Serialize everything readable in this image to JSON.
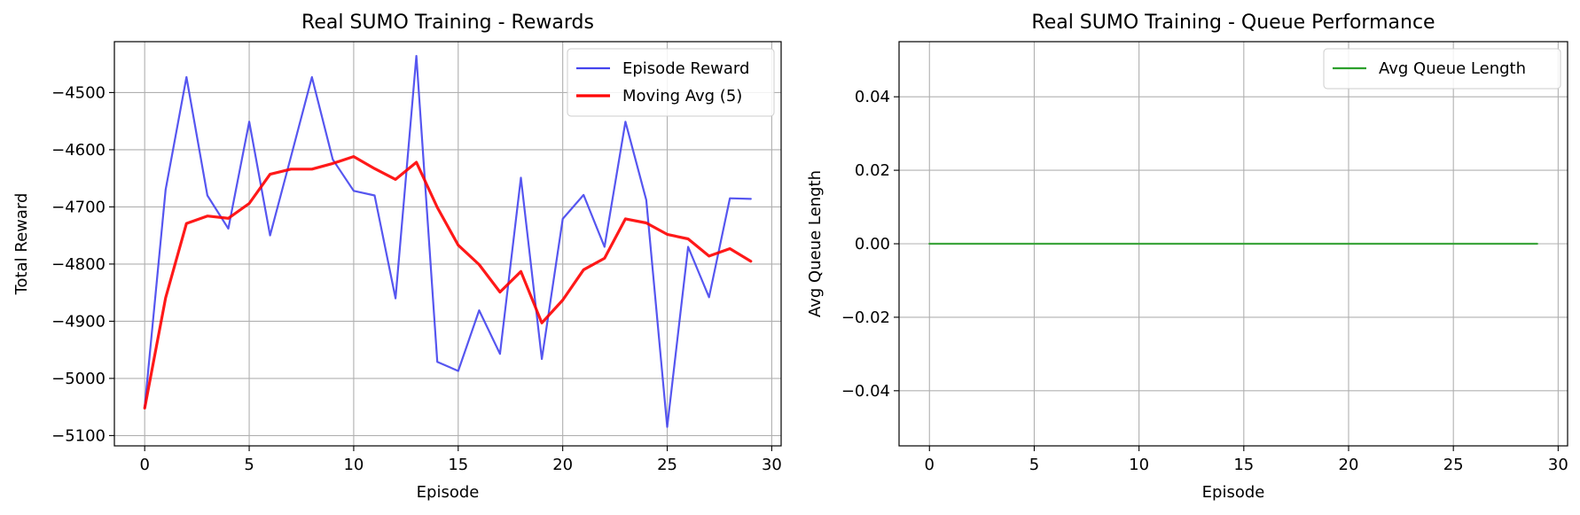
{
  "chart_data": [
    {
      "type": "line",
      "title": "Real SUMO Training - Rewards",
      "xlabel": "Episode",
      "ylabel": "Total Reward",
      "xlim": [
        -1.45,
        30.45
      ],
      "ylim": [
        -5118,
        -4411
      ],
      "xticks": [
        0,
        5,
        10,
        15,
        20,
        25,
        30
      ],
      "yticks": [
        -5100,
        -5000,
        -4900,
        -4800,
        -4700,
        -4600,
        -4500
      ],
      "grid": true,
      "legend_position": "upper right",
      "x": [
        0,
        1,
        2,
        3,
        4,
        5,
        6,
        7,
        8,
        9,
        10,
        11,
        12,
        13,
        14,
        15,
        16,
        17,
        18,
        19,
        20,
        21,
        22,
        23,
        24,
        25,
        26,
        27,
        28,
        29
      ],
      "series": [
        {
          "name": "Episode Reward",
          "color": "#4444ee",
          "values": [
            -5050,
            -4670,
            -4473,
            -4680,
            -4738,
            -4551,
            -4750,
            -4612,
            -4473,
            -4617,
            -4672,
            -4680,
            -4860,
            -4436,
            -4971,
            -4987,
            -4881,
            -4957,
            -4649,
            -4966,
            -4721,
            -4679,
            -4770,
            -4551,
            -4688,
            -5085,
            -4770,
            -4858,
            -4685,
            -4686
          ]
        },
        {
          "name": "Moving Avg (5)",
          "color": "#ff0000",
          "values": [
            -5052,
            -4859,
            -4729,
            -4716,
            -4720,
            -4694,
            -4643,
            -4634,
            -4634,
            -4624,
            -4612,
            -4633,
            -4652,
            -4622,
            -4701,
            -4767,
            -4801,
            -4849,
            -4813,
            -4903,
            -4863,
            -4810,
            -4790,
            -4721,
            -4728,
            -4748,
            -4756,
            -4786,
            -4773,
            -4795
          ]
        }
      ]
    },
    {
      "type": "line",
      "title": "Real SUMO Training - Queue Performance",
      "xlabel": "Episode",
      "ylabel": "Avg Queue Length",
      "xlim": [
        -1.45,
        30.45
      ],
      "ylim": [
        -0.055,
        0.055
      ],
      "xticks": [
        0,
        5,
        10,
        15,
        20,
        25,
        30
      ],
      "yticks": [
        -0.04,
        -0.02,
        0.0,
        0.02,
        0.04
      ],
      "ytick_labels": [
        "−0.04",
        "−0.02",
        "0.00",
        "0.02",
        "0.04"
      ],
      "grid": true,
      "legend_position": "upper right",
      "x": [
        0,
        1,
        2,
        3,
        4,
        5,
        6,
        7,
        8,
        9,
        10,
        11,
        12,
        13,
        14,
        15,
        16,
        17,
        18,
        19,
        20,
        21,
        22,
        23,
        24,
        25,
        26,
        27,
        28,
        29
      ],
      "series": [
        {
          "name": "Avg Queue Length",
          "color": "#2ca02c",
          "values": [
            0,
            0,
            0,
            0,
            0,
            0,
            0,
            0,
            0,
            0,
            0,
            0,
            0,
            0,
            0,
            0,
            0,
            0,
            0,
            0,
            0,
            0,
            0,
            0,
            0,
            0,
            0,
            0,
            0,
            0
          ]
        }
      ]
    }
  ]
}
